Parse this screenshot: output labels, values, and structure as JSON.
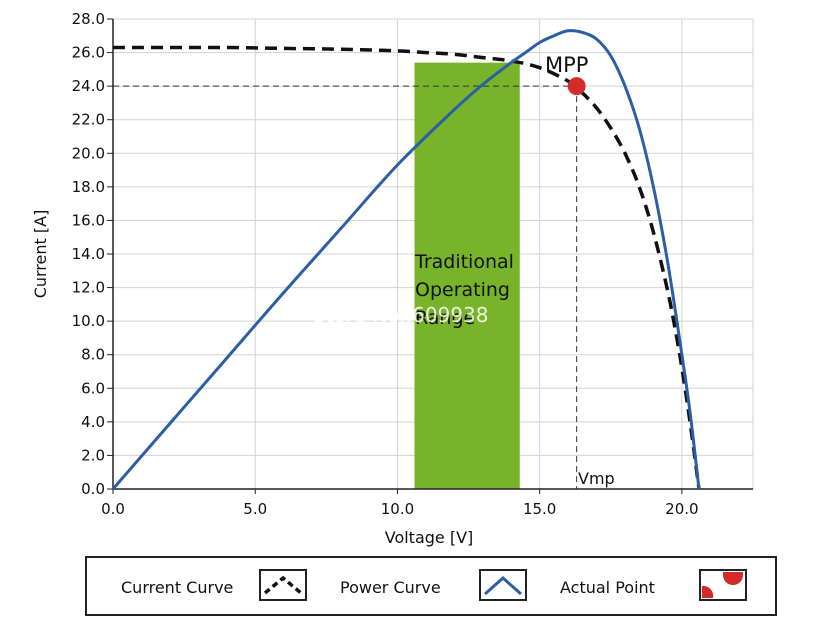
{
  "chart_data": {
    "type": "line",
    "xlabel": "Voltage [V]",
    "ylabel": "Current [A]",
    "xlim": [
      0,
      22.5
    ],
    "ylim": [
      0,
      28
    ],
    "x_ticks": [
      0,
      5,
      10,
      15,
      20
    ],
    "x_tick_labels": [
      "0.0",
      "5.0",
      "10.0",
      "15.0",
      "20.0"
    ],
    "y_ticks": [
      0,
      2,
      4,
      6,
      8,
      10,
      12,
      14,
      16,
      18,
      20,
      22,
      24,
      26,
      28
    ],
    "y_tick_labels": [
      "0.0",
      "2.0",
      "4.0",
      "6.0",
      "8.0",
      "10.0",
      "12.0",
      "14.0",
      "16.0",
      "18.0",
      "20.0",
      "22.0",
      "24.0",
      "26.0",
      "28.0"
    ],
    "grid": true,
    "series": [
      {
        "name": "Current Curve",
        "style": "dashed",
        "color": "#111111",
        "x": [
          0,
          2,
          4,
          6,
          8,
          10,
          11,
          12,
          13,
          14,
          15,
          16,
          16.5,
          17,
          17.5,
          18,
          18.5,
          19,
          19.5,
          19.8,
          20,
          20.2,
          20.4,
          20.5,
          20.6
        ],
        "y": [
          26.3,
          26.3,
          26.3,
          26.25,
          26.2,
          26.1,
          26.0,
          25.9,
          25.7,
          25.5,
          25.1,
          24.3,
          23.6,
          22.7,
          21.5,
          20.0,
          18.0,
          15.3,
          11.8,
          9.2,
          7.2,
          5.0,
          2.6,
          1.3,
          0.0
        ]
      },
      {
        "name": "Power Curve",
        "style": "solid",
        "color": "#2a5ea5",
        "x": [
          0,
          2,
          4,
          6,
          8,
          10,
          12,
          13,
          14,
          14.5,
          15,
          15.5,
          16,
          16.5,
          17,
          17.5,
          18,
          18.5,
          19,
          19.5,
          20,
          20.3,
          20.6
        ],
        "y": [
          0,
          3.9,
          7.8,
          11.7,
          15.5,
          19.3,
          22.6,
          24.1,
          25.4,
          26.0,
          26.6,
          27.0,
          27.3,
          27.2,
          26.8,
          25.8,
          24.0,
          21.5,
          18.0,
          13.5,
          8.0,
          4.4,
          0.0
        ]
      }
    ],
    "highlight_band": {
      "x_start": 10.6,
      "x_end": 14.3,
      "color": "#78b32a",
      "label_lines": [
        "Traditional",
        "Operating",
        "Range"
      ]
    },
    "mpp": {
      "label": "MPP",
      "x": 16.3,
      "y": 24.0,
      "color": "#d42a2a",
      "voltage_label": "Vmp"
    },
    "watermark": "Store No.:609938",
    "legend": {
      "position": "bottom",
      "entries": [
        {
          "label": "Current Curve",
          "icon": "dashed-arch-icon"
        },
        {
          "label": "Power Curve",
          "icon": "solid-arch-icon"
        },
        {
          "label": "Actual Point",
          "icon": "red-dot-icon"
        }
      ]
    }
  }
}
